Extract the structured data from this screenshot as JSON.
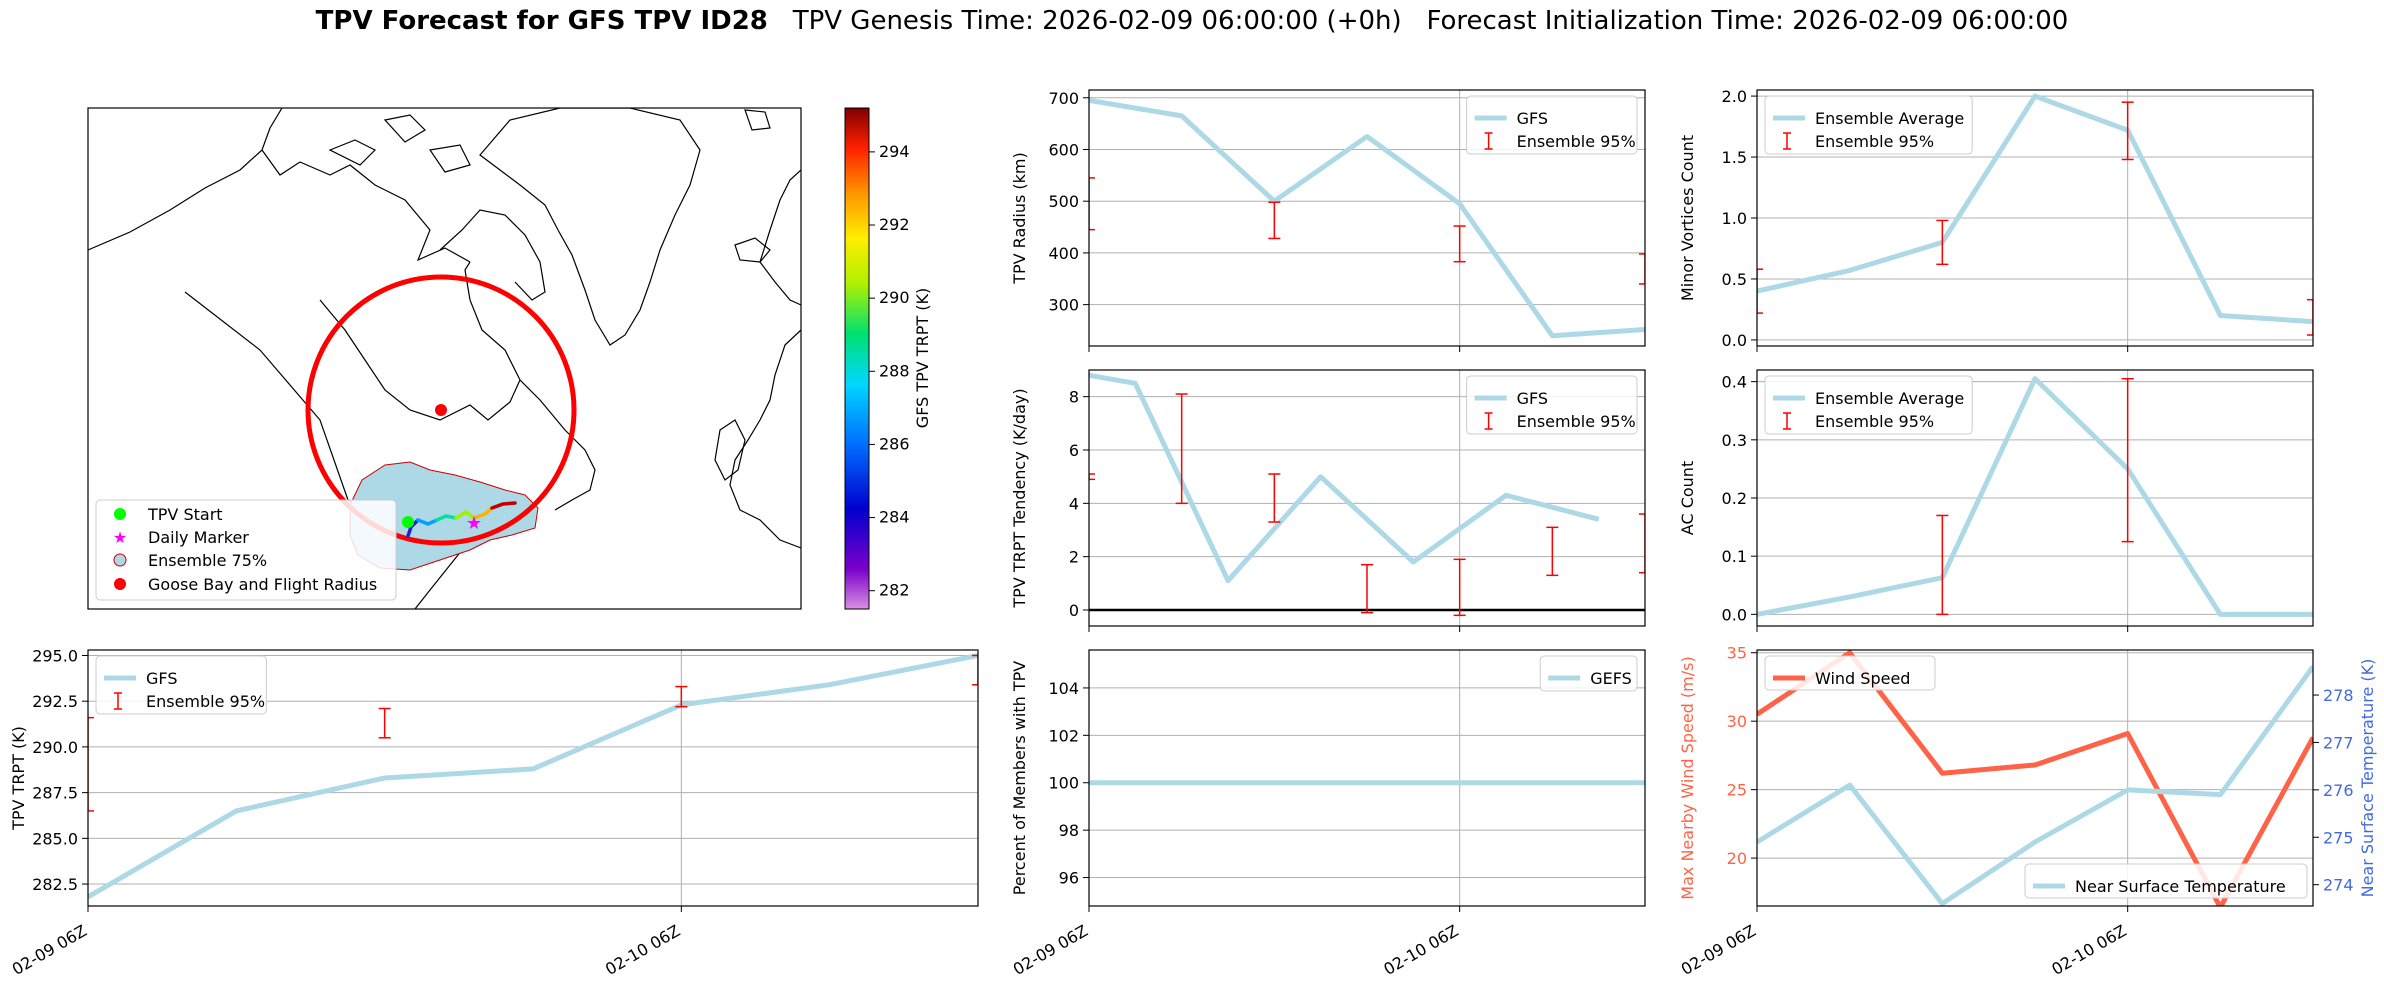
{
  "title": {
    "main": "TPV Forecast for GFS TPV ID28",
    "genesis": "TPV Genesis Time: 2026-02-09 06:00:00 (+0h)",
    "init": "Forecast Initialization Time: 2026-02-09 06:00:00"
  },
  "map": {
    "legend": [
      "TPV Start",
      "Daily Marker",
      "Ensemble 75%",
      "Goose Bay and Flight Radius"
    ],
    "colorbar": {
      "label": "GFS TPV TRPT (K)",
      "min": 281.5,
      "max": 295.2,
      "ticks": [
        "282",
        "284",
        "286",
        "288",
        "290",
        "292",
        "294"
      ]
    },
    "colors": {
      "start": "#00ff00",
      "daily": "#ff00ff",
      "ensemble_fill": "#add8e6",
      "radius": "#ff0000"
    }
  },
  "chart_data": [
    {
      "id": "radius",
      "type": "line",
      "title": "",
      "xlabel": "",
      "ylabel": "TPV Radius (km)",
      "x": [
        0,
        0.25,
        0.5,
        0.75,
        1.0,
        1.25,
        1.5
      ],
      "series": [
        {
          "name": "GFS",
          "values": [
            695,
            665,
            500,
            625,
            495,
            240,
            252
          ],
          "color": "#add8e6"
        }
      ],
      "errorbars": {
        "name": "Ensemble 95%",
        "color": "#ff0000",
        "points": [
          [
            0,
            445,
            545
          ],
          [
            0.5,
            428,
            498
          ],
          [
            1.0,
            383,
            452
          ],
          [
            1.5,
            340,
            398
          ]
        ]
      },
      "ylim": [
        220,
        715
      ],
      "xlim": [
        0,
        1.5
      ],
      "yticks": [
        300,
        400,
        500,
        600,
        700
      ],
      "ytick_labels": [
        "300",
        "400",
        "500",
        "600",
        "700"
      ],
      "xticks": [
        0,
        1.0
      ],
      "xtick_labels": [
        "",
        ""
      ],
      "legend_loc": "upper right"
    },
    {
      "id": "minor",
      "type": "line",
      "title": "",
      "xlabel": "",
      "ylabel": "Minor Vortices Count",
      "x": [
        0,
        0.25,
        0.5,
        0.75,
        1.0,
        1.25,
        1.5
      ],
      "series": [
        {
          "name": "Ensemble Average",
          "values": [
            0.4,
            0.57,
            0.8,
            2.0,
            1.72,
            0.2,
            0.15
          ],
          "color": "#add8e6"
        }
      ],
      "errorbars": {
        "name": "Ensemble 95%",
        "color": "#ff0000",
        "points": [
          [
            0,
            0.22,
            0.58
          ],
          [
            0.5,
            0.62,
            0.98
          ],
          [
            1.0,
            1.48,
            1.95
          ],
          [
            1.5,
            0.04,
            0.33
          ]
        ]
      },
      "ylim": [
        -0.05,
        2.05
      ],
      "xlim": [
        0,
        1.5
      ],
      "yticks": [
        0,
        0.5,
        1.0,
        1.5,
        2.0
      ],
      "ytick_labels": [
        "0.0",
        "0.5",
        "1.0",
        "1.5",
        "2.0"
      ],
      "xticks": [
        0,
        1.0
      ],
      "xtick_labels": [
        "",
        ""
      ],
      "legend_loc": "upper left"
    },
    {
      "id": "tendency",
      "type": "line",
      "title": "",
      "xlabel": "",
      "ylabel": "TPV TRPT Tendency (K/day)",
      "x": [
        0,
        0.125,
        0.25,
        0.375,
        0.5,
        0.625,
        0.75,
        0.875,
        1.0,
        1.125,
        1.25,
        1.375,
        1.5
      ],
      "series": [
        {
          "name": "GFS",
          "values": [
            8.8,
            8.5,
            null,
            1.1,
            null,
            5.0,
            null,
            1.8,
            null,
            4.3,
            null,
            3.4,
            null
          ],
          "color": "#add8e6"
        }
      ],
      "errorbars": {
        "name": "Ensemble 95%",
        "color": "#ff0000",
        "points": [
          [
            0,
            4.9,
            5.1
          ],
          [
            0.25,
            4.0,
            8.1
          ],
          [
            0.5,
            3.3,
            5.1
          ],
          [
            0.75,
            -0.1,
            1.7
          ],
          [
            1.0,
            -0.2,
            1.9
          ],
          [
            1.25,
            1.3,
            3.1
          ],
          [
            1.5,
            1.4,
            3.6
          ]
        ]
      },
      "hline": 0,
      "ylim": [
        -0.6,
        9.0
      ],
      "xlim": [
        0,
        1.5
      ],
      "yticks": [
        0,
        2,
        4,
        6,
        8
      ],
      "ytick_labels": [
        "0",
        "2",
        "4",
        "6",
        "8"
      ],
      "xticks": [
        0,
        1.0
      ],
      "xtick_labels": [
        "",
        ""
      ],
      "legend_loc": "upper right"
    },
    {
      "id": "ac",
      "type": "line",
      "title": "",
      "xlabel": "",
      "ylabel": "AC Count",
      "x": [
        0,
        0.25,
        0.5,
        0.75,
        1.0,
        1.25,
        1.5
      ],
      "series": [
        {
          "name": "Ensemble Average",
          "values": [
            0.0,
            0.03,
            0.063,
            0.405,
            0.25,
            0.0,
            0.0
          ],
          "color": "#add8e6"
        }
      ],
      "errorbars": {
        "name": "Ensemble 95%",
        "color": "#ff0000",
        "points": [
          [
            0.5,
            0.0,
            0.17
          ],
          [
            1.0,
            0.125,
            0.405
          ]
        ]
      },
      "ylim": [
        -0.02,
        0.42
      ],
      "xlim": [
        0,
        1.5
      ],
      "yticks": [
        0,
        0.1,
        0.2,
        0.3,
        0.4
      ],
      "ytick_labels": [
        "0.0",
        "0.1",
        "0.2",
        "0.3",
        "0.4"
      ],
      "xticks": [
        0,
        1.0
      ],
      "xtick_labels": [
        "",
        ""
      ],
      "legend_loc": "upper left"
    },
    {
      "id": "trpt",
      "type": "line",
      "title": "",
      "xlabel": "",
      "ylabel": "TPV TRPT (K)",
      "x": [
        0,
        0.25,
        0.5,
        0.75,
        1.0,
        1.25,
        1.5
      ],
      "series": [
        {
          "name": "GFS",
          "values": [
            281.8,
            286.5,
            288.3,
            288.8,
            292.3,
            293.4,
            295.0
          ],
          "color": "#add8e6"
        }
      ],
      "errorbars": {
        "name": "Ensemble 95%",
        "color": "#ff0000",
        "points": [
          [
            0,
            286.5,
            291.6
          ],
          [
            0.5,
            290.5,
            292.1
          ],
          [
            1.0,
            292.2,
            293.3
          ],
          [
            1.5,
            293.4,
            295.0
          ]
        ]
      },
      "ylim": [
        281.3,
        295.3
      ],
      "xlim": [
        0,
        1.5
      ],
      "yticks": [
        282.5,
        285,
        287.5,
        290,
        292.5,
        295
      ],
      "ytick_labels": [
        "282.5",
        "285.0",
        "287.5",
        "290.0",
        "292.5",
        "295.0"
      ],
      "xticks": [
        0,
        1.0
      ],
      "xtick_labels": [
        "02-09 06Z",
        "02-10 06Z"
      ],
      "legend_loc": "upper left"
    },
    {
      "id": "members",
      "type": "line",
      "title": "",
      "xlabel": "",
      "ylabel": "Percent of Members with TPV",
      "x": [
        0,
        1.5
      ],
      "series": [
        {
          "name": "GEFS",
          "values": [
            100,
            100
          ],
          "color": "#add8e6"
        }
      ],
      "ylim": [
        94.8,
        105.6
      ],
      "xlim": [
        0,
        1.5
      ],
      "yticks": [
        96,
        98,
        100,
        102,
        104
      ],
      "ytick_labels": [
        "96",
        "98",
        "100",
        "102",
        "104"
      ],
      "xticks": [
        0,
        1.0
      ],
      "xtick_labels": [
        "02-09 06Z",
        "02-10 06Z"
      ],
      "legend_loc": "upper right"
    },
    {
      "id": "wind",
      "type": "line",
      "title": "",
      "xlabel": "",
      "ylabel": "Max Nearby Wind Speed (m/s)",
      "ylabel_right": "Near Surface Temperature (K)",
      "x": [
        0,
        0.25,
        0.5,
        0.75,
        1.0,
        1.25,
        1.5
      ],
      "series": [
        {
          "name": "Wind Speed",
          "values": [
            30.5,
            35.0,
            26.2,
            26.8,
            29.1,
            16.4,
            28.8
          ],
          "color": "#ff6347",
          "axis": "left"
        },
        {
          "name": "Near Surface Temperature",
          "values": [
            274.9,
            276.1,
            273.6,
            274.9,
            276.0,
            275.9,
            278.6
          ],
          "color": "#add8e6",
          "axis": "right"
        }
      ],
      "ylim": [
        16.5,
        35.2
      ],
      "ylim_right": [
        273.55,
        278.95
      ],
      "xlim": [
        0,
        1.5
      ],
      "yticks": [
        20,
        25,
        30,
        35
      ],
      "ytick_labels": [
        "20",
        "25",
        "30",
        "35"
      ],
      "yticks_right": [
        274,
        275,
        276,
        277,
        278
      ],
      "ytick_labels_right": [
        "274",
        "275",
        "276",
        "277",
        "278"
      ],
      "xticks": [
        0,
        1.0
      ],
      "xtick_labels": [
        "02-09 06Z",
        "02-10 06Z"
      ],
      "left_axis_color": "#ff6347",
      "right_axis_color": "#4169e1",
      "legend_loc": "upper left / lower right"
    }
  ]
}
